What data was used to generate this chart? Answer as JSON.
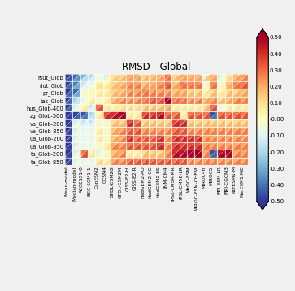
{
  "title": "RMSD - Global",
  "rows": [
    "rsut_Glob",
    "rlut_Glob",
    "pr_Glob",
    "tas_Glob",
    "hus_Glob-400",
    "zg_Glob-500",
    "va_Glob-200",
    "va_Glob-850",
    "ua_Glob-200",
    "ua_Glob-850",
    "ta_Glob-200",
    "ta_Glob-850"
  ],
  "cols": [
    "Mean-model",
    "Median-model",
    "ACCESS1-0",
    "BCC-SCM1-1",
    "CanESM2",
    "CCSM4",
    "GFDL-ESM2G",
    "GFDL-ESM2M",
    "GISS-E2-H",
    "GISS-E2-R",
    "HadGEM2-AO",
    "HadGEM2-CC",
    "HadGEM2-ES",
    "INM-CM4",
    "IPSL-CM5A-MR",
    "IPSL-CM5B-LR",
    "MirOC-ESM",
    "MIROC-ESM-CHEM",
    "MIROC4h",
    "MIROC5",
    "MPI-ESM-LR",
    "MRI-CGCM3",
    "NorESM1-M",
    "NorESM1-ME"
  ],
  "vmin": -0.5,
  "vmax": 0.5,
  "upper_data": [
    [
      -0.5,
      -0.42,
      -0.28,
      -0.2,
      -0.05,
      -0.12,
      0.1,
      0.12,
      0.2,
      0.2,
      0.12,
      0.15,
      0.18,
      0.28,
      0.12,
      0.2,
      0.18,
      0.18,
      -0.08,
      0.18,
      -0.12,
      0.08,
      0.18,
      0.22
    ],
    [
      -0.48,
      -0.38,
      -0.15,
      -0.1,
      0.05,
      0.02,
      0.12,
      0.15,
      0.22,
      0.22,
      0.15,
      0.18,
      0.22,
      0.3,
      0.15,
      0.28,
      0.25,
      0.25,
      -0.05,
      0.25,
      -0.05,
      0.15,
      0.25,
      0.28
    ],
    [
      -0.5,
      -0.42,
      -0.05,
      -0.05,
      0.02,
      0.02,
      0.12,
      0.15,
      0.2,
      0.2,
      0.25,
      0.2,
      0.2,
      0.2,
      0.15,
      0.15,
      0.1,
      0.1,
      0.02,
      0.1,
      0.02,
      0.1,
      0.1,
      0.15
    ],
    [
      -0.5,
      -0.22,
      -0.1,
      0.02,
      -0.05,
      0.02,
      0.15,
      0.2,
      0.2,
      0.2,
      0.25,
      0.3,
      0.3,
      0.5,
      0.25,
      0.25,
      0.2,
      0.2,
      0.15,
      0.2,
      0.1,
      0.15,
      0.2,
      0.2
    ],
    [
      -0.5,
      -0.12,
      0.02,
      -0.15,
      0.3,
      0.02,
      0.02,
      0.05,
      0.05,
      0.05,
      0.1,
      0.1,
      0.1,
      0.15,
      0.02,
      0.02,
      0.02,
      0.02,
      0.1,
      0.3,
      -0.1,
      0.02,
      0.02,
      0.02
    ],
    [
      -0.5,
      -0.48,
      -0.45,
      -0.2,
      0.02,
      0.35,
      0.4,
      0.5,
      0.02,
      0.02,
      0.35,
      0.35,
      0.4,
      0.28,
      0.28,
      0.02,
      0.28,
      0.28,
      0.28,
      -0.45,
      0.28,
      0.28,
      0.28,
      0.28
    ],
    [
      -0.5,
      -0.12,
      -0.15,
      -0.15,
      -0.05,
      -0.05,
      0.1,
      0.1,
      0.35,
      0.28,
      0.1,
      0.1,
      0.1,
      0.1,
      0.35,
      0.35,
      0.1,
      0.1,
      0.1,
      0.1,
      0.1,
      0.1,
      0.1,
      0.1
    ],
    [
      -0.5,
      -0.12,
      -0.1,
      -0.1,
      0.02,
      -0.05,
      0.15,
      0.2,
      0.28,
      0.28,
      0.2,
      0.2,
      0.2,
      0.2,
      0.28,
      0.28,
      0.2,
      0.2,
      0.2,
      0.2,
      0.2,
      0.2,
      0.2,
      0.2
    ],
    [
      -0.5,
      -0.12,
      -0.1,
      -0.1,
      0.02,
      -0.05,
      0.15,
      0.2,
      0.35,
      0.28,
      0.28,
      0.28,
      0.35,
      0.2,
      0.35,
      0.35,
      0.35,
      0.35,
      0.2,
      0.2,
      0.2,
      0.2,
      0.2,
      0.2
    ],
    [
      -0.5,
      -0.12,
      -0.1,
      -0.1,
      -0.05,
      0.02,
      0.2,
      0.2,
      0.28,
      0.28,
      0.28,
      0.28,
      0.35,
      0.2,
      0.35,
      0.35,
      0.35,
      0.35,
      0.2,
      0.2,
      0.2,
      0.2,
      0.2,
      0.2
    ],
    [
      -0.5,
      -0.12,
      0.28,
      0.02,
      -0.1,
      -0.05,
      0.15,
      0.2,
      0.02,
      0.02,
      0.1,
      0.1,
      0.1,
      0.2,
      0.4,
      0.45,
      0.5,
      0.5,
      0.2,
      -0.45,
      0.45,
      0.5,
      0.2,
      0.2
    ],
    [
      -0.5,
      -0.12,
      -0.1,
      -0.1,
      0.05,
      0.02,
      0.2,
      0.2,
      0.28,
      0.28,
      0.28,
      0.28,
      0.28,
      0.28,
      0.28,
      0.28,
      0.2,
      0.2,
      0.2,
      0.2,
      0.2,
      0.2,
      0.2,
      0.2
    ]
  ],
  "lower_data": [
    [
      -0.45,
      -0.35,
      -0.18,
      -0.12,
      -0.05,
      0.02,
      0.15,
      0.18,
      0.22,
      0.22,
      0.18,
      0.2,
      0.22,
      0.3,
      0.18,
      0.22,
      0.22,
      0.22,
      0.15,
      0.22,
      -0.02,
      0.12,
      0.22,
      0.28
    ],
    [
      -0.42,
      -0.3,
      -0.08,
      -0.02,
      0.1,
      0.08,
      0.18,
      0.22,
      0.28,
      0.28,
      0.22,
      0.22,
      0.28,
      0.35,
      0.22,
      0.3,
      0.3,
      0.3,
      0.02,
      0.3,
      0.02,
      0.2,
      0.3,
      0.35
    ],
    [
      -0.42,
      -0.3,
      0.02,
      0.02,
      0.08,
      0.08,
      0.18,
      0.22,
      0.28,
      0.28,
      0.3,
      0.28,
      0.28,
      0.28,
      0.22,
      0.22,
      0.18,
      0.18,
      0.08,
      0.18,
      0.08,
      0.18,
      0.18,
      0.22
    ],
    [
      -0.42,
      -0.15,
      -0.02,
      0.08,
      0.02,
      0.08,
      0.22,
      0.28,
      0.28,
      0.28,
      0.3,
      0.35,
      0.35,
      0.5,
      0.3,
      0.3,
      0.28,
      0.28,
      0.22,
      0.28,
      0.18,
      0.22,
      0.28,
      0.28
    ],
    [
      -0.42,
      -0.05,
      0.08,
      -0.08,
      0.35,
      0.08,
      0.08,
      0.12,
      0.12,
      0.12,
      0.18,
      0.18,
      0.18,
      0.22,
      0.08,
      0.08,
      0.08,
      0.08,
      0.18,
      0.35,
      -0.02,
      0.08,
      0.08,
      0.08
    ],
    [
      -0.48,
      -0.42,
      -0.4,
      -0.15,
      0.08,
      0.42,
      0.48,
      0.5,
      0.08,
      0.08,
      0.42,
      0.42,
      0.48,
      0.35,
      0.35,
      0.08,
      0.35,
      0.35,
      0.35,
      -0.4,
      0.35,
      0.35,
      0.35,
      0.35
    ],
    [
      -0.48,
      -0.05,
      -0.1,
      -0.1,
      0.02,
      0.02,
      0.18,
      0.18,
      0.42,
      0.35,
      0.18,
      0.18,
      0.18,
      0.18,
      0.42,
      0.42,
      0.18,
      0.18,
      0.18,
      0.18,
      0.18,
      0.18,
      0.18,
      0.18
    ],
    [
      -0.48,
      -0.05,
      -0.05,
      -0.05,
      0.08,
      0.02,
      0.22,
      0.28,
      0.35,
      0.35,
      0.28,
      0.28,
      0.28,
      0.28,
      0.35,
      0.35,
      0.28,
      0.28,
      0.28,
      0.28,
      0.28,
      0.28,
      0.28,
      0.28
    ],
    [
      -0.48,
      -0.05,
      -0.05,
      -0.05,
      0.08,
      0.02,
      0.22,
      0.28,
      0.42,
      0.35,
      0.35,
      0.35,
      0.42,
      0.28,
      0.42,
      0.42,
      0.42,
      0.42,
      0.28,
      0.28,
      0.28,
      0.28,
      0.28,
      0.28
    ],
    [
      -0.48,
      -0.05,
      -0.05,
      -0.05,
      0.02,
      0.08,
      0.28,
      0.28,
      0.35,
      0.35,
      0.35,
      0.35,
      0.42,
      0.28,
      0.42,
      0.42,
      0.42,
      0.42,
      0.28,
      0.28,
      0.28,
      0.28,
      0.28,
      0.28
    ],
    [
      -0.48,
      -0.05,
      0.35,
      0.08,
      -0.02,
      0.02,
      0.22,
      0.28,
      0.08,
      0.08,
      0.18,
      0.18,
      0.18,
      0.28,
      0.48,
      0.5,
      0.5,
      0.5,
      0.28,
      -0.42,
      0.5,
      0.5,
      0.28,
      0.28
    ],
    [
      -0.48,
      -0.05,
      -0.05,
      -0.05,
      0.12,
      0.08,
      0.28,
      0.28,
      0.35,
      0.35,
      0.35,
      0.35,
      0.35,
      0.35,
      0.35,
      0.35,
      0.28,
      0.28,
      0.28,
      0.28,
      0.28,
      0.28,
      0.28,
      0.28
    ]
  ],
  "background_color": "#f0f0f0",
  "figsize": [
    3.63,
    3.58
  ],
  "dpi": 100
}
